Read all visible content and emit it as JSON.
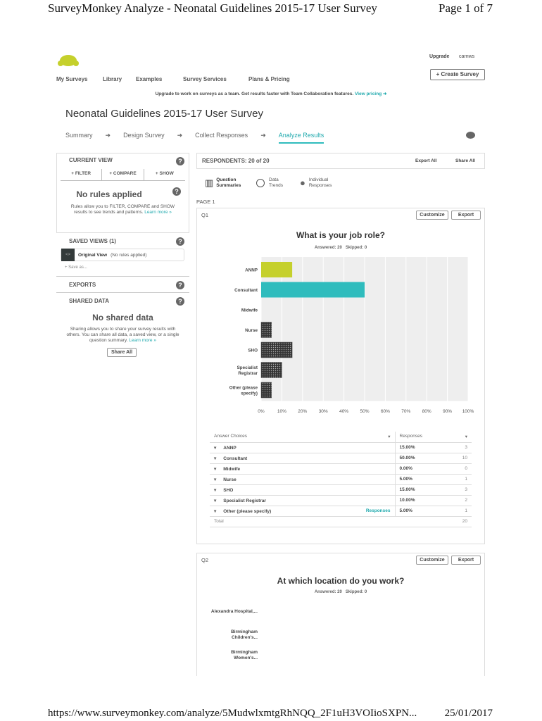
{
  "doc_header": {
    "title": "SurveyMonkey Analyze - Neonatal Guidelines 2015-17 User Survey",
    "page": "Page 1 of 7"
  },
  "doc_footer": {
    "url": "https://www.surveymonkey.com/analyze/5MudwlxmtgRhNQQ_2F1uH3VOIioSXPN...",
    "date": "25/01/2017"
  },
  "topbar": {
    "upgrade": "Upgrade",
    "user": "carnws",
    "create": "+ Create Survey"
  },
  "nav": [
    "My Surveys",
    "Library",
    "Examples",
    "Survey Services",
    "Plans & Pricing"
  ],
  "banner": {
    "text": "Upgrade to work on surveys as a team. Get results faster with Team Collaboration features.",
    "link": "View pricing ➜"
  },
  "survey_title": "Neonatal Guidelines 2015-17 User Survey",
  "steps": [
    "Summary",
    "Design Survey",
    "Collect Responses",
    "Analyze Results"
  ],
  "step_arrow": "➜",
  "sidebar": {
    "current_view": "CURRENT VIEW",
    "filter": "+ FILTER",
    "compare": "+ COMPARE",
    "show": "+ SHOW",
    "no_rules": "No rules applied",
    "rules_text": "Rules allow you to FILTER, COMPARE and SHOW results to see trends and patterns.",
    "learn_more": "Learn more »",
    "saved_views": "SAVED VIEWS (1)",
    "original_view": "Original View",
    "original_note": "(No rules applied)",
    "save_as": "+ Save as...",
    "exports": "EXPORTS",
    "shared_data": "SHARED DATA",
    "no_shared": "No shared data",
    "shared_text": "Sharing allows you to share your survey results with others. You can share all data, a saved view, or a single question summary.",
    "share_all": "Share All"
  },
  "respondents": {
    "label": "RESPONDENTS: 20 of 20",
    "export_all": "Export All",
    "share_all": "Share All"
  },
  "view_tabs": [
    "Question Summaries",
    "Data Trends",
    "Individual Responses"
  ],
  "page_label": "PAGE 1",
  "q1": {
    "num": "Q1",
    "customize": "Customize",
    "export": "Export",
    "title": "What is your job role?",
    "answered": "Answered: 20",
    "skipped": "Skipped: 0",
    "table_headers": [
      "Answer Choices",
      "Responses"
    ],
    "rows": [
      {
        "choice": "ANNP",
        "pct": "15.00%",
        "count": "3"
      },
      {
        "choice": "Consultant",
        "pct": "50.00%",
        "count": "10"
      },
      {
        "choice": "Midwife",
        "pct": "0.00%",
        "count": "0"
      },
      {
        "choice": "Nurse",
        "pct": "5.00%",
        "count": "1"
      },
      {
        "choice": "SHO",
        "pct": "15.00%",
        "count": "3"
      },
      {
        "choice": "Specialist Registrar",
        "pct": "10.00%",
        "count": "2"
      },
      {
        "choice": "Other (please specify)",
        "pct": "5.00%",
        "count": "1",
        "link": "Responses"
      }
    ],
    "total_label": "Total",
    "total": "20"
  },
  "chart_data": {
    "type": "bar",
    "orientation": "horizontal",
    "categories": [
      "ANNP",
      "Consultant",
      "Midwife",
      "Nurse",
      "SHO",
      "Specialist Registrar",
      "Other (please specify)"
    ],
    "values": [
      15,
      50,
      0,
      5,
      15,
      10,
      5
    ],
    "xlim": [
      0,
      100
    ],
    "xticks": [
      "0%",
      "10%",
      "20%",
      "30%",
      "40%",
      "50%",
      "60%",
      "70%",
      "80%",
      "90%",
      "100%"
    ],
    "colors": [
      "#c5d02c",
      "#2fbcbd",
      "#999999",
      "#8a8a8a",
      "#1d4a4f",
      "#c8c8c8",
      "#555555"
    ],
    "grid": true
  },
  "q2": {
    "num": "Q2",
    "customize": "Customize",
    "export": "Export",
    "title": "At which location do you work?",
    "answered": "Answered: 20",
    "skipped": "Skipped: 0",
    "categories": [
      "Alexandra Hospital,...",
      "Birmingham Children's...",
      "Birmingham Women's..."
    ]
  }
}
